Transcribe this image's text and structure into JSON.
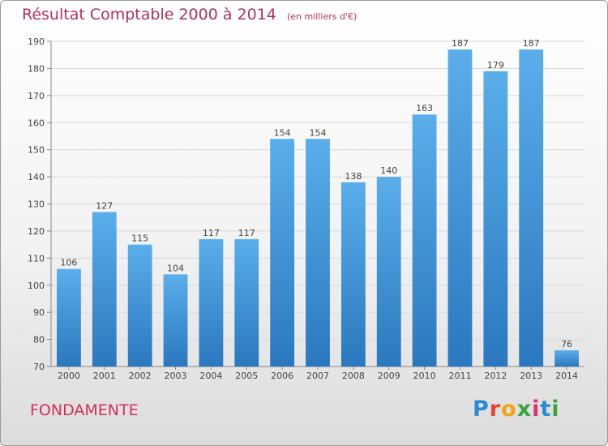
{
  "chart_data": {
    "type": "bar",
    "title": "Résultat Comptable 2000 à 2014",
    "subtitle": "(en milliers d'€)",
    "categories": [
      "2000",
      "2001",
      "2002",
      "2003",
      "2004",
      "2005",
      "2006",
      "2007",
      "2008",
      "2009",
      "2010",
      "2011",
      "2012",
      "2013",
      "2014"
    ],
    "values": [
      106,
      127,
      115,
      104,
      117,
      117,
      154,
      154,
      138,
      140,
      163,
      187,
      179,
      187,
      76
    ],
    "ylim": [
      70,
      190
    ],
    "yticks": [
      70,
      80,
      90,
      100,
      110,
      120,
      130,
      140,
      150,
      160,
      170,
      180,
      190
    ],
    "grid": true,
    "bar_color": "#3d8fd6"
  },
  "footer": {
    "place": "FONDAMENTE",
    "logo": {
      "letters": [
        "P",
        "r",
        "o",
        "x",
        "i",
        "t",
        "i"
      ],
      "colors": [
        "#2a8bd4",
        "#e5462f",
        "#f2a516",
        "#3aa43a",
        "#e03070",
        "#2a8bd4",
        "#3aa43a"
      ]
    }
  }
}
